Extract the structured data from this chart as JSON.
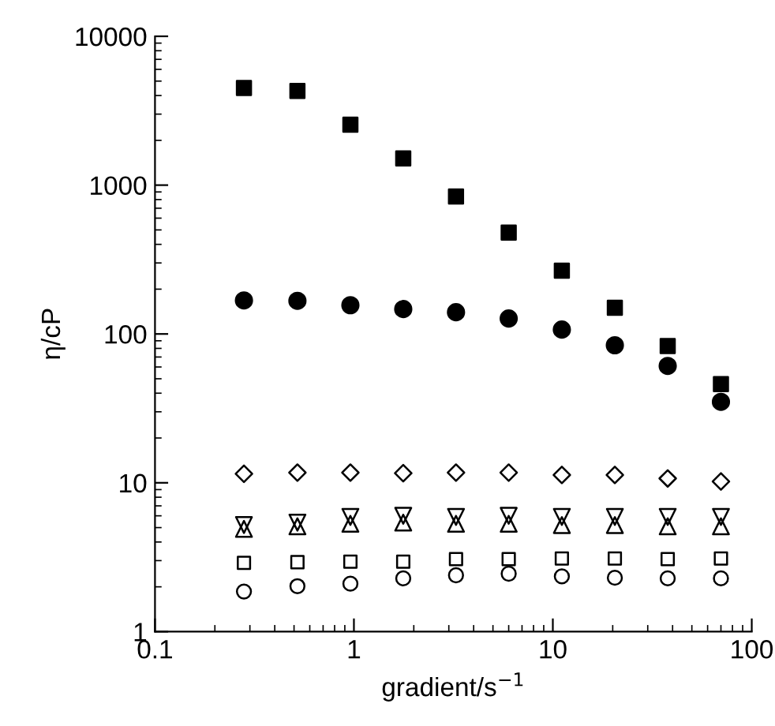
{
  "chart_data": {
    "type": "scatter",
    "xlabel": "gradient/s$^{−1}$",
    "ylabel": "η/cP",
    "log": "xy",
    "xlim": [
      0.1,
      100
    ],
    "ylim": [
      1,
      10000
    ],
    "xticks": [
      0.1,
      1,
      10,
      100
    ],
    "yticks": [
      1,
      10,
      100,
      1000,
      10000
    ],
    "grid": false,
    "x": [
      0.28,
      0.52,
      0.96,
      1.77,
      3.26,
      6.0,
      11.1,
      20.5,
      37.8,
      70
    ],
    "series": [
      {
        "color": "#000000",
        "marker": "square",
        "values": [
          4490,
          4300,
          2550,
          1510,
          838,
          480,
          266,
          150,
          83,
          46
        ]
      },
      {
        "color": "#000000",
        "marker": "circle",
        "values": [
          168,
          167,
          156,
          147,
          140,
          127,
          107,
          84,
          61,
          35
        ]
      },
      {
        "color": "#000000",
        "marker": "diamond-open",
        "values": [
          11.5,
          11.7,
          11.7,
          11.6,
          11.7,
          11.7,
          11.3,
          11.3,
          10.7,
          10.2
        ]
      },
      {
        "color": "#000000",
        "marker": "triangle-down-open",
        "values": [
          5.2,
          5.4,
          5.9,
          6.0,
          5.9,
          6.0,
          5.9,
          5.9,
          5.9,
          5.9
        ]
      },
      {
        "color": "#000000",
        "marker": "triangle-open",
        "values": [
          4.9,
          5.1,
          5.3,
          5.4,
          5.3,
          5.3,
          5.2,
          5.2,
          5.1,
          5.1
        ]
      },
      {
        "color": "#000000",
        "marker": "square-open",
        "values": [
          2.9,
          2.93,
          2.95,
          2.95,
          3.07,
          3.07,
          3.1,
          3.1,
          3.07,
          3.1
        ]
      },
      {
        "color": "#000000",
        "marker": "circle-open",
        "values": [
          1.86,
          2.02,
          2.1,
          2.28,
          2.39,
          2.45,
          2.35,
          2.3,
          2.28,
          2.28
        ]
      }
    ]
  }
}
